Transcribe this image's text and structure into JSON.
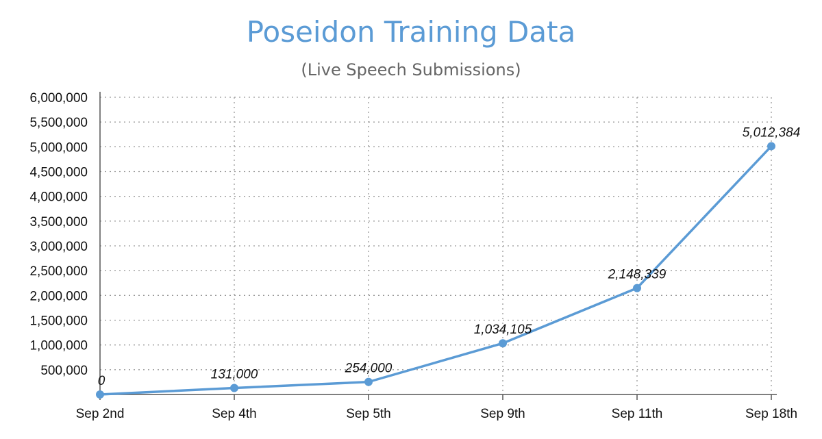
{
  "chart_data": {
    "type": "line",
    "title": "Poseidon Training Data",
    "subtitle": "(Live Speech Submissions)",
    "xlabel": "",
    "ylabel": "",
    "categories": [
      "Sep 2nd",
      "Sep 4th",
      "Sep 5th",
      "Sep 9th",
      "Sep 11th",
      "Sep 18th"
    ],
    "series": [
      {
        "values": [
          0,
          131000,
          254000,
          1034105,
          2148339,
          5012384
        ]
      }
    ],
    "data_labels": [
      "0",
      "131,000",
      "254,000",
      "1,034,105",
      "2,148,339",
      "5,012,384"
    ],
    "y_ticks": [
      {
        "value": 500000,
        "label": "500,000"
      },
      {
        "value": 1000000,
        "label": "1,000,000"
      },
      {
        "value": 1500000,
        "label": "1,500,000"
      },
      {
        "value": 2000000,
        "label": "2,000,000"
      },
      {
        "value": 2500000,
        "label": "2,500,000"
      },
      {
        "value": 3000000,
        "label": "3,000,000"
      },
      {
        "value": 3500000,
        "label": "3,500,000"
      },
      {
        "value": 4000000,
        "label": "4,000,000"
      },
      {
        "value": 4500000,
        "label": "4,500,000"
      },
      {
        "value": 5000000,
        "label": "5,000,000"
      },
      {
        "value": 5500000,
        "label": "5,500,000"
      },
      {
        "value": 6000000,
        "label": "6,000,000"
      }
    ],
    "ylim": [
      0,
      6000000
    ],
    "grid": "dotted",
    "legend": "none",
    "colors": {
      "line": "#5b9bd5",
      "title": "#5b9bd5",
      "subtitle": "#666666",
      "grid": "#999999"
    }
  }
}
